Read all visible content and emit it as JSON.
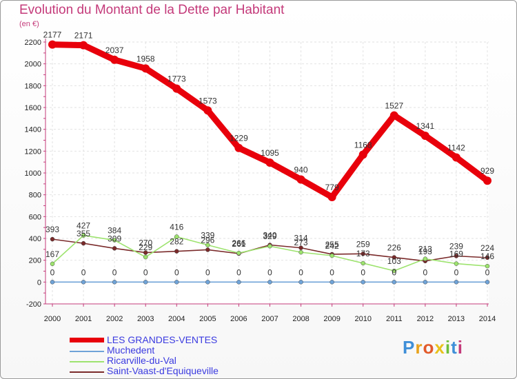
{
  "title": "Evolution du Montant de la Dette par Habitant",
  "unit": "(en €)",
  "brand": "Proxiti",
  "chart_data": {
    "type": "line",
    "title": "Evolution du Montant de la Dette par Habitant",
    "ylabel": "(en €)",
    "xlabel": "",
    "ylim": [
      -200,
      2200
    ],
    "yticks": [
      -200,
      0,
      200,
      400,
      600,
      800,
      1000,
      1200,
      1400,
      1600,
      1800,
      2000,
      2200
    ],
    "x": [
      "2000",
      "2001",
      "2002",
      "2003",
      "2004",
      "2005",
      "2006",
      "2007",
      "2008",
      "2009",
      "2010",
      "2011",
      "2012",
      "2013",
      "2014"
    ],
    "series": [
      {
        "name": "LES GRANDES-VENTES",
        "color": "#e8000b",
        "values": [
          2177,
          2171,
          2037,
          1958,
          1773,
          1573,
          1229,
          1095,
          940,
          779,
          1168,
          1527,
          1341,
          1142,
          929
        ]
      },
      {
        "name": "Muchedent",
        "color": "#6fa3d8",
        "values": [
          0,
          0,
          0,
          0,
          0,
          0,
          0,
          0,
          0,
          0,
          0,
          0,
          0,
          0,
          0
        ]
      },
      {
        "name": "Ricarville-du-Val",
        "color": "#9de36e",
        "values": [
          167,
          427,
          384,
          229,
          416,
          339,
          266,
          329,
          273,
          242,
          173,
          103,
          213,
          169,
          146
        ]
      },
      {
        "name": "Saint-Vaast-d'Equiqueville",
        "color": "#7a2a2a",
        "values": [
          393,
          355,
          309,
          270,
          282,
          296,
          261,
          340,
          314,
          255,
          259,
          226,
          193,
          239,
          224
        ]
      }
    ]
  }
}
